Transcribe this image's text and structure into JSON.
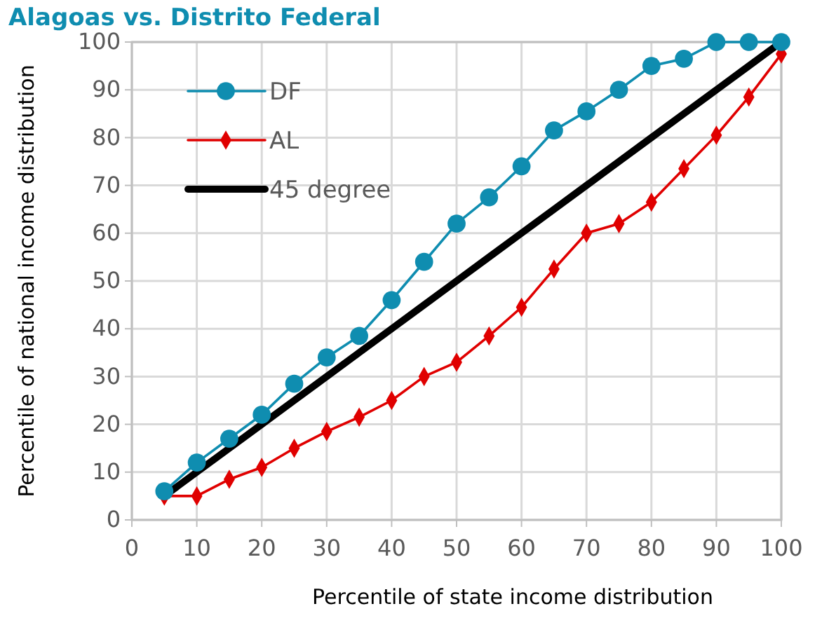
{
  "chart_data": {
    "type": "line",
    "title": "Alagoas vs. Distrito Federal",
    "xlabel": "Percentile of state income distribution",
    "ylabel": "Percentile of national income distribution",
    "xlim": [
      0,
      100
    ],
    "xticks": [
      0,
      10,
      20,
      30,
      40,
      50,
      60,
      70,
      80,
      90,
      100
    ],
    "ylim": [
      0,
      100
    ],
    "yticks": [
      0,
      10,
      20,
      30,
      40,
      50,
      60,
      70,
      80,
      90,
      100
    ],
    "grid": true,
    "legend": "top left",
    "x": [
      5,
      10,
      15,
      20,
      25,
      30,
      35,
      40,
      45,
      50,
      55,
      60,
      65,
      70,
      75,
      80,
      85,
      90,
      95,
      100
    ],
    "series": [
      {
        "name": "DF",
        "color": "#0f8db0",
        "marker": "circle",
        "values": [
          6,
          12,
          17,
          22,
          28.5,
          34,
          38.5,
          46,
          54,
          62,
          67.5,
          74,
          81.5,
          85.5,
          90,
          95,
          96.5,
          100,
          100,
          100
        ]
      },
      {
        "name": "AL",
        "color": "#e00000",
        "marker": "diamond",
        "values": [
          5,
          5,
          8.5,
          11,
          15,
          18.5,
          21.5,
          25,
          30,
          33,
          38.5,
          44.5,
          52.5,
          60,
          62,
          66.5,
          73.5,
          80.5,
          88.5,
          97.5
        ]
      },
      {
        "name": "45 degree",
        "color": "#000000",
        "marker": "none",
        "values": [
          5,
          10,
          15,
          20,
          25,
          30,
          35,
          40,
          45,
          50,
          55,
          60,
          65,
          70,
          75,
          80,
          85,
          90,
          95,
          100
        ]
      }
    ]
  }
}
